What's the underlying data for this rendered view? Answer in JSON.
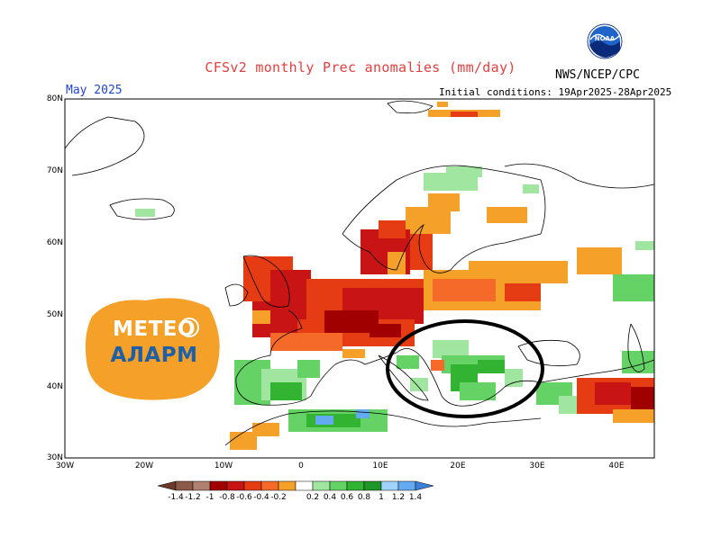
{
  "header": {
    "title": "CFSv2 monthly Prec anomalies (mm/day)",
    "month": "May 2025",
    "initial_conditions": "Initial conditions: 19Apr2025-28Apr2025",
    "agency": "NWS/NCEP/CPC",
    "agency_logo_text": "NOAA"
  },
  "watermark": {
    "line1": "МЕТЕО",
    "line2": "АЛАРМ"
  },
  "map": {
    "lon_range": [
      -30,
      45
    ],
    "lat_range": [
      30,
      80
    ],
    "lat_labels": [
      "80N",
      "70N",
      "60N",
      "50N",
      "40N",
      "30N"
    ],
    "lon_labels": [
      "30W",
      "20W",
      "10W",
      "0",
      "10E",
      "20E",
      "30E",
      "40E"
    ],
    "annotation": "ellipse-around-balkans"
  },
  "legend": {
    "labels": [
      "-1.4",
      "-1.2",
      "-1",
      "-0.8",
      "-0.6",
      "-0.4",
      "-0.2",
      "0.2",
      "0.4",
      "0.6",
      "0.8",
      "1",
      "1.2",
      "1.4"
    ],
    "colors": [
      "#6b3a2a",
      "#8c5a48",
      "#b08070",
      "#a00000",
      "#c81414",
      "#e63c14",
      "#f56a28",
      "#f5a028",
      "#ffffff",
      "#a0e6a0",
      "#64d264",
      "#32b432",
      "#1e9628",
      "#a0d2fa",
      "#64aaf0",
      "#3c82dc"
    ],
    "color_classes": [
      "dry-1.4",
      "dry-1.2",
      "dry-1",
      "dry-0.8",
      "dry-0.6",
      "dry-0.4",
      "dry-0.2",
      "dry-small",
      "neutral",
      "wet-0.2",
      "wet-0.4",
      "wet-0.6",
      "wet-0.8",
      "wet-1",
      "wet-1.2",
      "wet-1.4"
    ]
  }
}
